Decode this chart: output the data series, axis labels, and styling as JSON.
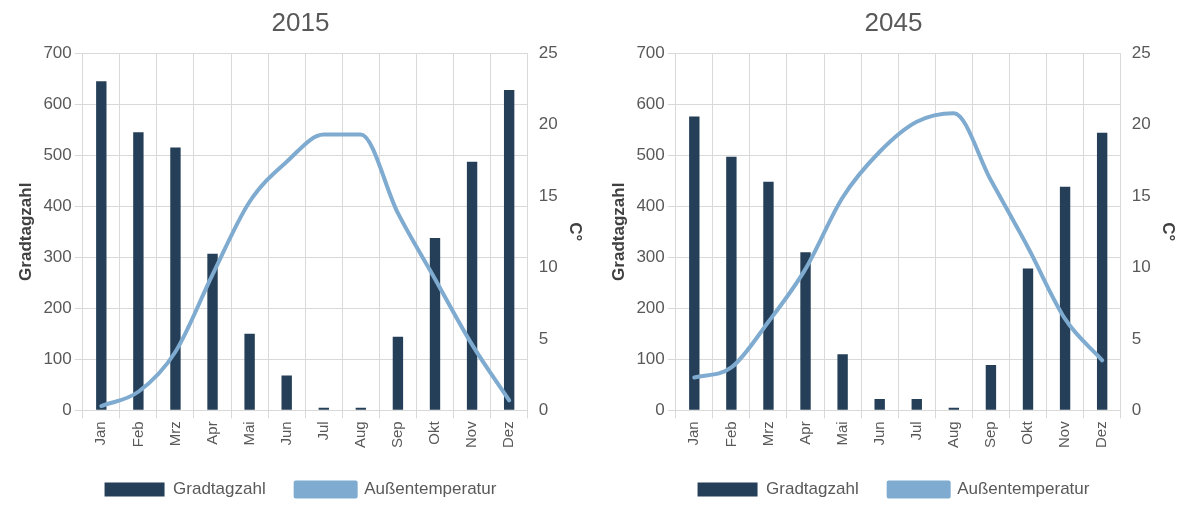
{
  "chart_data": [
    {
      "type": "bar",
      "title": "2015",
      "ylabel": "Gradtagzahl",
      "y2label": "C°",
      "categories": [
        "Jan",
        "Feb",
        "Mrz",
        "Apr",
        "Mai",
        "Jun",
        "Jul",
        "Aug",
        "Sep",
        "Okt",
        "Nov",
        "Dez"
      ],
      "series": [
        {
          "name": "Gradtagzahl",
          "color": "#243f57",
          "values": [
            645,
            545,
            515,
            307,
            150,
            68,
            5,
            5,
            144,
            338,
            487,
            628
          ]
        },
        {
          "name": "Außentemperatur",
          "type": "line",
          "axis": "y2",
          "color": "#7eabcf",
          "values": [
            0.3,
            1.3,
            4.1,
            9.5,
            14.6,
            17.4,
            19.3,
            19.3,
            13.8,
            9.2,
            4.6,
            0.7
          ]
        }
      ],
      "ylim": [
        0,
        700
      ],
      "yticks": [
        0,
        100,
        200,
        300,
        400,
        500,
        600,
        700
      ],
      "y2lim": [
        0,
        25
      ],
      "y2ticks": [
        0,
        5,
        10,
        15,
        20,
        25
      ],
      "grid": true,
      "legend": "bottom",
      "marker": "none"
    },
    {
      "type": "bar",
      "title": "2045",
      "ylabel": "Gradtagzahl",
      "y2label": "C°",
      "categories": [
        "Jan",
        "Feb",
        "Mrz",
        "Apr",
        "Mai",
        "Jun",
        "Jul",
        "Aug",
        "Sep",
        "Okt",
        "Nov",
        "Dez"
      ],
      "series": [
        {
          "name": "Gradtagzahl",
          "color": "#243f57",
          "values": [
            576,
            497,
            448,
            310,
            110,
            22,
            22,
            5,
            89,
            278,
            438,
            544
          ]
        },
        {
          "name": "Außentemperatur",
          "type": "line",
          "axis": "y2",
          "color": "#7eabcf",
          "values": [
            2.3,
            3.0,
            6.2,
            9.9,
            14.9,
            18.1,
            20.2,
            20.8,
            16.1,
            11.4,
            6.4,
            3.5
          ]
        }
      ],
      "ylim": [
        0,
        700
      ],
      "yticks": [
        0,
        100,
        200,
        300,
        400,
        500,
        600,
        700
      ],
      "y2lim": [
        0,
        25
      ],
      "y2ticks": [
        0,
        5,
        10,
        15,
        20,
        25
      ],
      "grid": true,
      "legend": "bottom",
      "marker": "none"
    }
  ]
}
